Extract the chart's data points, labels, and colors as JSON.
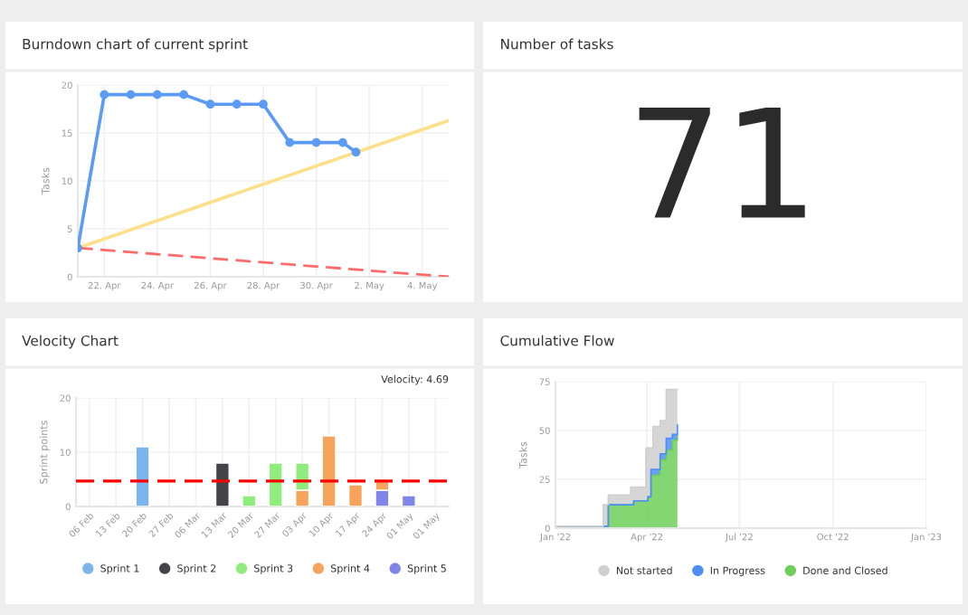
{
  "chart_data": [
    {
      "type": "line",
      "title": "Burndown chart of current sprint",
      "ylabel": "Tasks",
      "series": [
        {
          "color": "#5b9bf5",
          "marker": "circle",
          "line_style": "solid",
          "x": [
            "2022-04-21",
            "2022-04-22",
            "2022-04-23",
            "2022-04-24",
            "2022-04-25",
            "2022-04-26",
            "2022-04-27",
            "2022-04-28",
            "2022-04-29",
            "2022-04-30",
            "2022-05-01",
            "2022-05-01T12:00"
          ],
          "values": [
            3,
            19,
            19,
            19,
            19,
            18,
            18,
            18,
            14,
            14,
            14,
            13
          ]
        },
        {
          "color": "#ffe08a",
          "marker": "none",
          "line_style": "solid",
          "x": [
            "2022-04-21",
            "2022-05-05"
          ],
          "values": [
            3,
            16.3
          ]
        },
        {
          "color": "#ff6b6b",
          "marker": "none",
          "line_style": "dashed",
          "x": [
            "2022-04-21",
            "2022-05-05"
          ],
          "values": [
            3,
            0
          ]
        }
      ],
      "xlim": [
        "2022-04-21",
        "2022-05-05"
      ],
      "xticks": [
        {
          "value": "2022-04-22",
          "label": "22. Apr"
        },
        {
          "value": "2022-04-24",
          "label": "24. Apr"
        },
        {
          "value": "2022-04-26",
          "label": "26. Apr"
        },
        {
          "value": "2022-04-28",
          "label": "28. Apr"
        },
        {
          "value": "2022-04-30",
          "label": "30. Apr"
        },
        {
          "value": "2022-05-02",
          "label": "2. May"
        },
        {
          "value": "2022-05-04",
          "label": "4. May"
        }
      ],
      "ylim": [
        0,
        20
      ],
      "yticks": [
        0,
        5,
        10,
        15,
        20
      ],
      "grid": true,
      "legend": false
    },
    {
      "type": "other",
      "title": "Number of tasks",
      "annotations": [
        "71"
      ]
    },
    {
      "type": "bar",
      "title": "Velocity Chart",
      "ylabel": "Sprint points",
      "stacked": true,
      "categories": [
        "06 Feb",
        "13 Feb",
        "20 Feb",
        "27 Feb",
        "06 Mar",
        "13 Mar",
        "20 Mar",
        "27 Mar",
        "03 Apr",
        "10 Apr",
        "17 Apr",
        "24 Apr",
        "01 May",
        "01 May"
      ],
      "series": [
        {
          "name": "Sprint 5",
          "color": "#8085e9",
          "values": [
            null,
            null,
            null,
            null,
            null,
            null,
            null,
            null,
            null,
            null,
            null,
            3,
            2,
            null
          ]
        },
        {
          "name": "Sprint 4",
          "color": "#f7a35c",
          "values": [
            null,
            null,
            null,
            null,
            null,
            null,
            null,
            null,
            3,
            13,
            4,
            2,
            null,
            null
          ]
        },
        {
          "name": "Sprint 3",
          "color": "#90ed7d",
          "values": [
            null,
            null,
            null,
            null,
            null,
            null,
            2,
            8,
            5,
            null,
            null,
            null,
            null,
            null
          ]
        },
        {
          "name": "Sprint 2",
          "color": "#434348",
          "values": [
            null,
            null,
            null,
            null,
            null,
            8,
            null,
            null,
            null,
            null,
            null,
            null,
            null,
            null
          ]
        },
        {
          "name": "Sprint 1",
          "color": "#7cb5ec",
          "values": [
            null,
            null,
            11,
            null,
            null,
            null,
            null,
            null,
            null,
            null,
            null,
            null,
            null,
            null
          ]
        }
      ],
      "ylim": [
        0,
        20
      ],
      "yticks": [
        0,
        10,
        20
      ],
      "grid": true,
      "legend": "bottom",
      "ref_lines": [
        {
          "axis": "y",
          "value": 4.69,
          "color": "#ff0000",
          "line_style": "dashed"
        }
      ],
      "annotations": [
        "Velocity: 4.69"
      ]
    },
    {
      "type": "area",
      "title": "Cumulative Flow",
      "ylabel": "Tasks",
      "stacked": true,
      "x": [
        "2022-01-01",
        "2022-02-17",
        "2022-02-17",
        "2022-02-22",
        "2022-02-22",
        "2022-03-16",
        "2022-03-16",
        "2022-03-19",
        "2022-03-19",
        "2022-03-31",
        "2022-03-31",
        "2022-04-02",
        "2022-04-02",
        "2022-04-05",
        "2022-04-05",
        "2022-04-07",
        "2022-04-07",
        "2022-04-14",
        "2022-04-14",
        "2022-04-20",
        "2022-04-20",
        "2022-04-26",
        "2022-04-26",
        "2022-05-01",
        "2022-05-01"
      ],
      "series": [
        {
          "name": "Done and Closed",
          "color": "#6fcf5a",
          "values": [
            1,
            1,
            1,
            1,
            12,
            12,
            12,
            12,
            14,
            14,
            14,
            14,
            16,
            16,
            27,
            27,
            27,
            27,
            35,
            35,
            40,
            40,
            45,
            45,
            48
          ]
        },
        {
          "name": "In Progress",
          "color": "#4d8ef7",
          "values": [
            0,
            0,
            0,
            0,
            0,
            0,
            0,
            0,
            0,
            0,
            0,
            0,
            0,
            0,
            3,
            3,
            3,
            3,
            3,
            3,
            6,
            6,
            3,
            3,
            5
          ]
        },
        {
          "name": "Not started",
          "color": "#cfcfcf",
          "values": [
            0,
            0,
            11,
            11,
            5,
            5,
            9,
            9,
            7,
            7,
            27,
            27,
            25,
            25,
            11,
            11,
            22,
            22,
            17,
            17,
            25,
            25,
            23,
            23,
            18
          ]
        }
      ],
      "xlim": [
        "2022-01-01",
        "2023-01-01"
      ],
      "xticks": [
        {
          "value": "2022-01-01",
          "label": "Jan '22"
        },
        {
          "value": "2022-04-01",
          "label": "Apr '22"
        },
        {
          "value": "2022-07-01",
          "label": "Jul '22"
        },
        {
          "value": "2022-10-01",
          "label": "Oct '22"
        },
        {
          "value": "2023-01-01",
          "label": "Jan '23"
        }
      ],
      "ylim": [
        0,
        75
      ],
      "yticks": [
        0,
        25,
        50,
        75
      ],
      "grid": true,
      "legend": "bottom"
    }
  ]
}
